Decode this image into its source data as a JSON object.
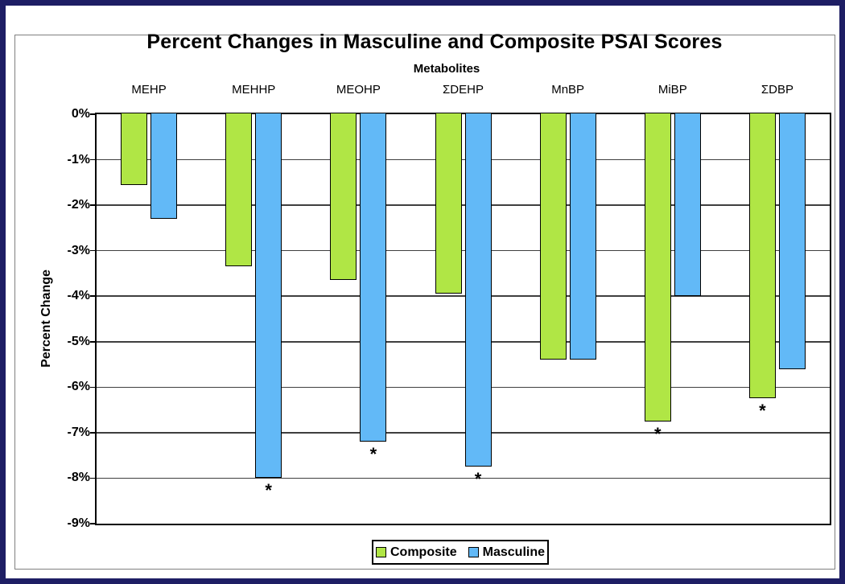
{
  "figure": {
    "outer_border_color": "#1e1e64",
    "inner_frame_color": "#7f7f7f",
    "background": "#ffffff"
  },
  "chart_data": {
    "type": "bar",
    "title": "Percent Changes in Masculine and Composite PSAI Scores",
    "xlabel": "Metabolites",
    "ylabel": "Percent Change",
    "categories": [
      "MEHP",
      "MEHHP",
      "MEOHP",
      "ΣDEHP",
      "MnBP",
      "MiBP",
      "ΣDBP"
    ],
    "series": [
      {
        "name": "Composite",
        "color": "#b0e645",
        "values": [
          -1.55,
          -3.35,
          -3.65,
          -3.95,
          -5.4,
          -6.75,
          -6.25
        ],
        "significant": [
          false,
          false,
          false,
          false,
          false,
          true,
          true
        ]
      },
      {
        "name": "Masculine",
        "color": "#62b9f7",
        "values": [
          -2.3,
          -8.0,
          -7.2,
          -7.75,
          -5.4,
          -4.0,
          -5.6
        ],
        "significant": [
          false,
          true,
          true,
          true,
          false,
          false,
          false
        ]
      }
    ],
    "ylim": [
      -9,
      0
    ],
    "ytick_step": 1,
    "ytick_labels": [
      "0%",
      "-1%",
      "-2%",
      "-3%",
      "-4%",
      "-5%",
      "-6%",
      "-7%",
      "-8%",
      "-9%"
    ],
    "grid": true,
    "gridline_color": "#3f3f3f",
    "legend_position": "bottom",
    "significance_marker": "*"
  }
}
